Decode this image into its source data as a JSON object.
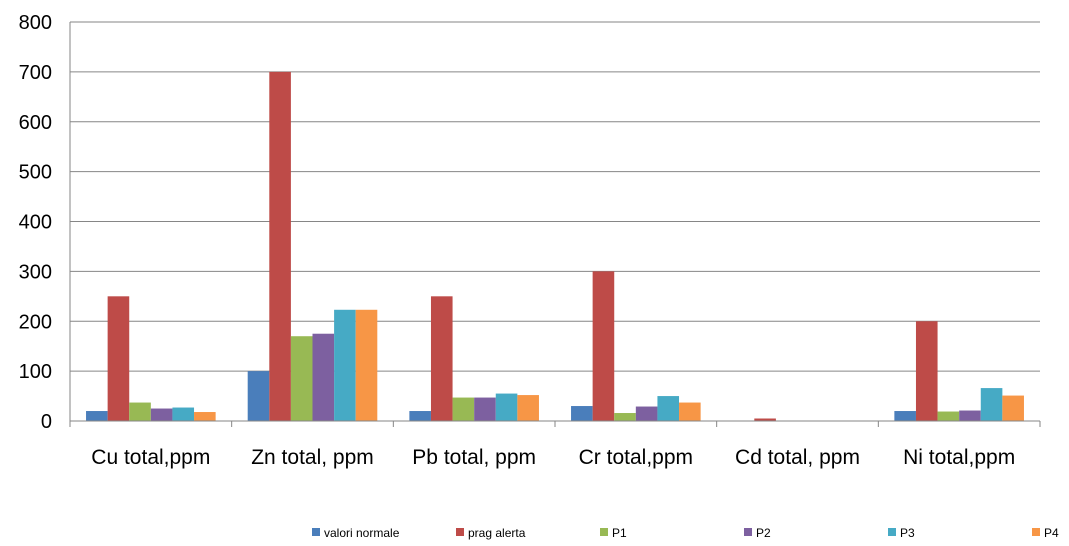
{
  "chart_data": {
    "type": "bar",
    "categories": [
      "Cu total,ppm",
      "Zn total, ppm",
      "Pb total, ppm",
      "Cr total,ppm",
      "Cd total, ppm",
      "Ni total,ppm"
    ],
    "series": [
      {
        "name": "valori normale",
        "color": "#4a7ebb",
        "values": [
          20,
          100,
          20,
          30,
          1,
          20
        ]
      },
      {
        "name": "prag alerta",
        "color": "#be4b48",
        "values": [
          250,
          700,
          250,
          300,
          5,
          200
        ]
      },
      {
        "name": "P1",
        "color": "#98b954",
        "values": [
          37,
          170,
          47,
          16,
          0.5,
          19
        ]
      },
      {
        "name": "P2",
        "color": "#7d60a0",
        "values": [
          25,
          175,
          47,
          29,
          0.5,
          21
        ]
      },
      {
        "name": "P3",
        "color": "#46aac5",
        "values": [
          27,
          223,
          55,
          50,
          0.5,
          66
        ]
      },
      {
        "name": "P4",
        "color": "#f79646",
        "values": [
          18,
          223,
          52,
          37,
          0.5,
          51
        ]
      }
    ],
    "ylim": [
      0,
      800
    ],
    "yticks": [
      0,
      100,
      200,
      300,
      400,
      500,
      600,
      700,
      800
    ],
    "grid": true,
    "legend_position": "bottom",
    "title": "",
    "xlabel": "",
    "ylabel": ""
  }
}
